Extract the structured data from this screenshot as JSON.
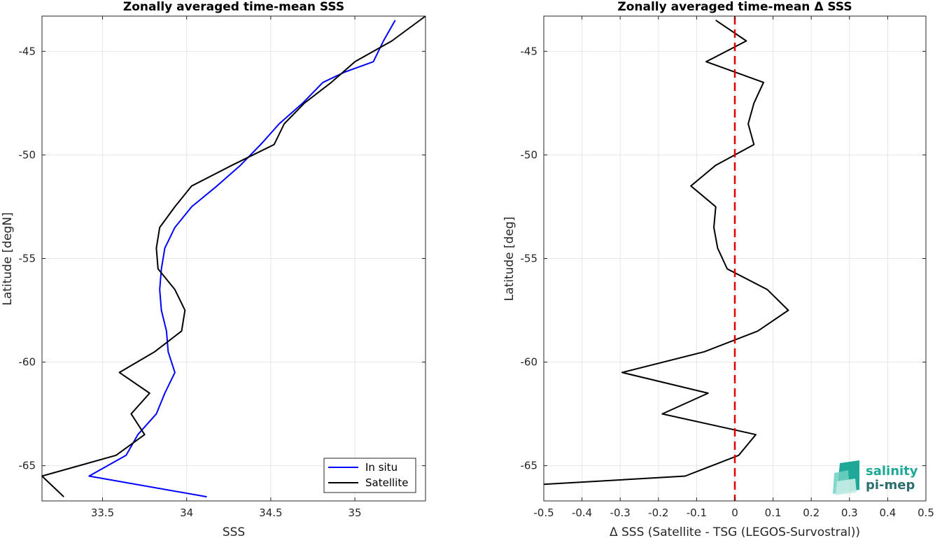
{
  "chart_data": [
    {
      "type": "line",
      "title": "Zonally averaged time-mean SSS",
      "xlabel": "SSS",
      "ylabel": "Latitude [degN]",
      "xlim": [
        33.14,
        35.42
      ],
      "ylim": [
        -66.7,
        -43.3
      ],
      "xticks": [
        33.5,
        34,
        34.5,
        35
      ],
      "xtick_labels": [
        "33.5",
        "34",
        "34.5",
        "35"
      ],
      "yticks": [
        -45,
        -50,
        -55,
        -60,
        -65
      ],
      "ytick_labels": [
        "-45",
        "-50",
        "-55",
        "-60",
        "-65"
      ],
      "grid": true,
      "legend_position": "bottom-right",
      "series": [
        {
          "name": "In situ",
          "color": "#0000ff",
          "points": [
            [
              35.24,
              -43.5
            ],
            [
              35.17,
              -44.5
            ],
            [
              35.11,
              -45.5
            ],
            [
              34.94,
              -46.0
            ],
            [
              34.81,
              -46.5
            ],
            [
              34.69,
              -47.5
            ],
            [
              34.55,
              -48.5
            ],
            [
              34.44,
              -49.5
            ],
            [
              34.32,
              -50.5
            ],
            [
              34.18,
              -51.5
            ],
            [
              34.03,
              -52.5
            ],
            [
              33.93,
              -53.5
            ],
            [
              33.87,
              -54.5
            ],
            [
              33.85,
              -55.5
            ],
            [
              33.84,
              -56.5
            ],
            [
              33.85,
              -57.5
            ],
            [
              33.88,
              -58.5
            ],
            [
              33.89,
              -59.5
            ],
            [
              33.93,
              -60.5
            ],
            [
              33.87,
              -61.5
            ],
            [
              33.82,
              -62.5
            ],
            [
              33.71,
              -63.5
            ],
            [
              33.64,
              -64.5
            ],
            [
              33.42,
              -65.5
            ],
            [
              34.12,
              -66.5
            ]
          ]
        },
        {
          "name": "Satellite",
          "color": "#000000",
          "points": [
            [
              35.42,
              -43.3
            ],
            [
              35.22,
              -44.5
            ],
            [
              35.0,
              -45.5
            ],
            [
              34.86,
              -46.5
            ],
            [
              34.7,
              -47.5
            ],
            [
              34.58,
              -48.5
            ],
            [
              34.52,
              -49.5
            ],
            [
              34.27,
              -50.5
            ],
            [
              34.03,
              -51.5
            ],
            [
              33.93,
              -52.5
            ],
            [
              33.84,
              -53.5
            ],
            [
              33.82,
              -54.5
            ],
            [
              33.83,
              -55.5
            ],
            [
              33.93,
              -56.5
            ],
            [
              33.99,
              -57.5
            ],
            [
              33.97,
              -58.5
            ],
            [
              33.81,
              -59.5
            ],
            [
              33.6,
              -60.5
            ],
            [
              33.78,
              -61.5
            ],
            [
              33.67,
              -62.5
            ],
            [
              33.75,
              -63.5
            ],
            [
              33.58,
              -64.5
            ],
            [
              33.14,
              -65.5
            ],
            [
              33.27,
              -66.5
            ]
          ]
        }
      ]
    },
    {
      "type": "line",
      "title": "Zonally averaged time-mean Δ SSS",
      "xlabel": "Δ SSS (Satellite - TSG (LEGOS-Survostral))",
      "ylabel": "Latitude [deg]",
      "xlim": [
        -0.5,
        0.5
      ],
      "ylim": [
        -66.7,
        -43.3
      ],
      "xticks": [
        -0.5,
        -0.4,
        -0.3,
        -0.2,
        -0.1,
        0,
        0.1,
        0.2,
        0.3,
        0.4,
        0.5
      ],
      "xtick_labels": [
        "-0.5",
        "-0.4",
        "-0.3",
        "-0.2",
        "-0.1",
        "0",
        "0.1",
        "0.2",
        "0.3",
        "0.4",
        "0.5"
      ],
      "yticks": [
        -45,
        -50,
        -55,
        -60,
        -65
      ],
      "ytick_labels": [
        "-45",
        "-50",
        "-55",
        "-60",
        "-65"
      ],
      "grid": true,
      "series": [
        {
          "color": "#000000",
          "points": [
            [
              -0.05,
              -43.5
            ],
            [
              0.03,
              -44.5
            ],
            [
              -0.075,
              -45.5
            ],
            [
              0.075,
              -46.5
            ],
            [
              0.05,
              -47.5
            ],
            [
              0.035,
              -48.5
            ],
            [
              0.05,
              -49.5
            ],
            [
              -0.05,
              -50.5
            ],
            [
              -0.115,
              -51.5
            ],
            [
              -0.05,
              -52.5
            ],
            [
              -0.055,
              -53.5
            ],
            [
              -0.045,
              -54.5
            ],
            [
              -0.02,
              -55.5
            ],
            [
              0.085,
              -56.5
            ],
            [
              0.14,
              -57.5
            ],
            [
              0.06,
              -58.5
            ],
            [
              -0.08,
              -59.5
            ],
            [
              -0.295,
              -60.5
            ],
            [
              -0.07,
              -61.5
            ],
            [
              -0.19,
              -62.5
            ],
            [
              0.055,
              -63.5
            ],
            [
              0.01,
              -64.5
            ],
            [
              -0.13,
              -65.5
            ],
            [
              -0.5,
              -65.9
            ]
          ]
        },
        {
          "color": "#e00000",
          "style": "dashed",
          "points": [
            [
              0,
              -43.3
            ],
            [
              0,
              -66.7
            ]
          ]
        }
      ]
    }
  ],
  "logo": {
    "line1": "salinity",
    "line2": "pi-mep"
  }
}
